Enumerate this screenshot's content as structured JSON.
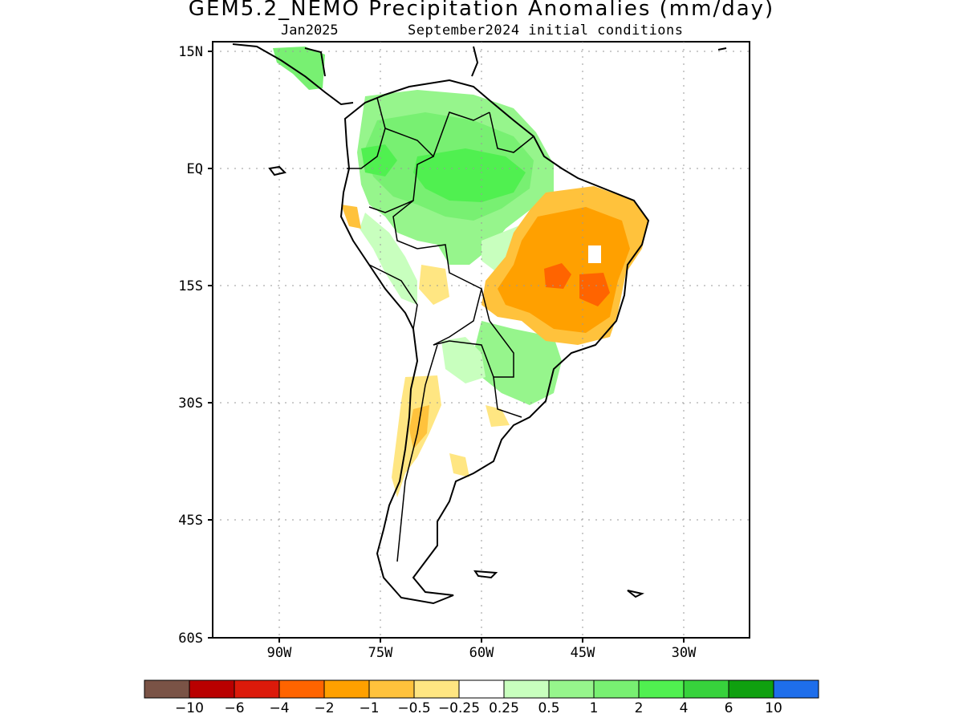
{
  "header": {
    "title": "GEM5.2_NEMO Precipitation Anomalies (mm/day)",
    "valid_month": "Jan2025",
    "initial_conditions": "September2024 initial conditions"
  },
  "axes": {
    "lat_labels": [
      "15N",
      "EQ",
      "15S",
      "30S",
      "45S",
      "60S"
    ],
    "lon_labels": [
      "90W",
      "75W",
      "60W",
      "45W",
      "30W"
    ]
  },
  "colorbar": {
    "colors": [
      "#7a5346",
      "#b90000",
      "#dc1a0a",
      "#ff6400",
      "#ffa000",
      "#ffc23c",
      "#ffe682",
      "#ffffff",
      "#c8ffbe",
      "#96f58c",
      "#78f072",
      "#50f050",
      "#37d23c",
      "#0fa00f",
      "#1e6eeb"
    ],
    "labels": [
      "−10",
      "−6",
      "−4",
      "−2",
      "−1",
      "−0.5",
      "−0.25",
      "0.25",
      "0.5",
      "1",
      "2",
      "4",
      "6",
      "10"
    ]
  }
}
